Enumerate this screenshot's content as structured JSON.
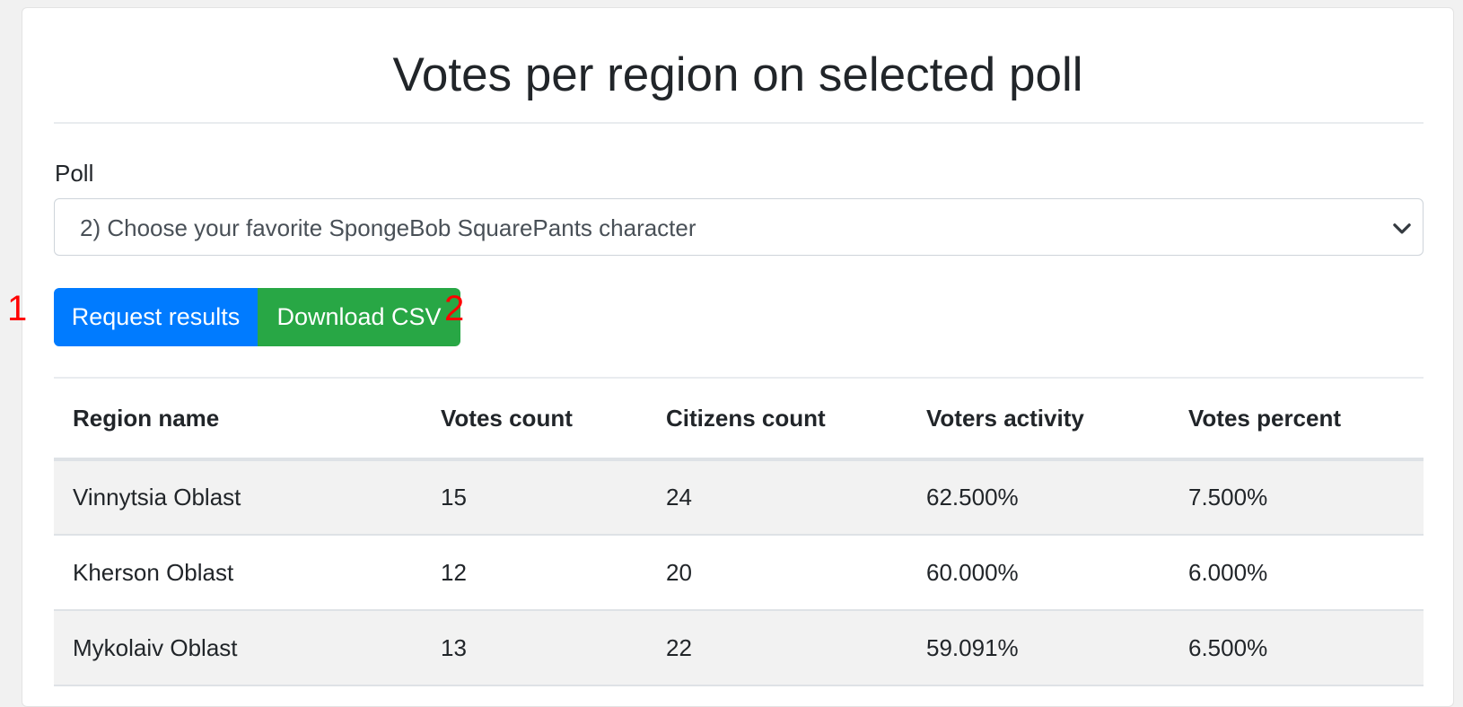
{
  "page": {
    "title": "Votes per region on selected poll"
  },
  "poll": {
    "label": "Poll",
    "selected": "2) Choose your favorite SpongeBob SquarePants character"
  },
  "buttons": {
    "request_label": "Request results",
    "download_label": "Download CSV"
  },
  "markers": {
    "one": "1",
    "two": "2"
  },
  "table": {
    "headers": [
      "Region name",
      "Votes count",
      "Citizens count",
      "Voters activity",
      "Votes percent"
    ],
    "rows": [
      [
        "Vinnytsia Oblast",
        "15",
        "24",
        "62.500%",
        "7.500%"
      ],
      [
        "Kherson Oblast",
        "12",
        "20",
        "60.000%",
        "6.000%"
      ],
      [
        "Mykolaiv Oblast",
        "13",
        "22",
        "59.091%",
        "6.500%"
      ]
    ]
  },
  "colors": {
    "primary": "#007bff",
    "success": "#28a745",
    "marker": "#ff0000"
  },
  "icons": {
    "select_caret": "chevron-down-icon"
  }
}
